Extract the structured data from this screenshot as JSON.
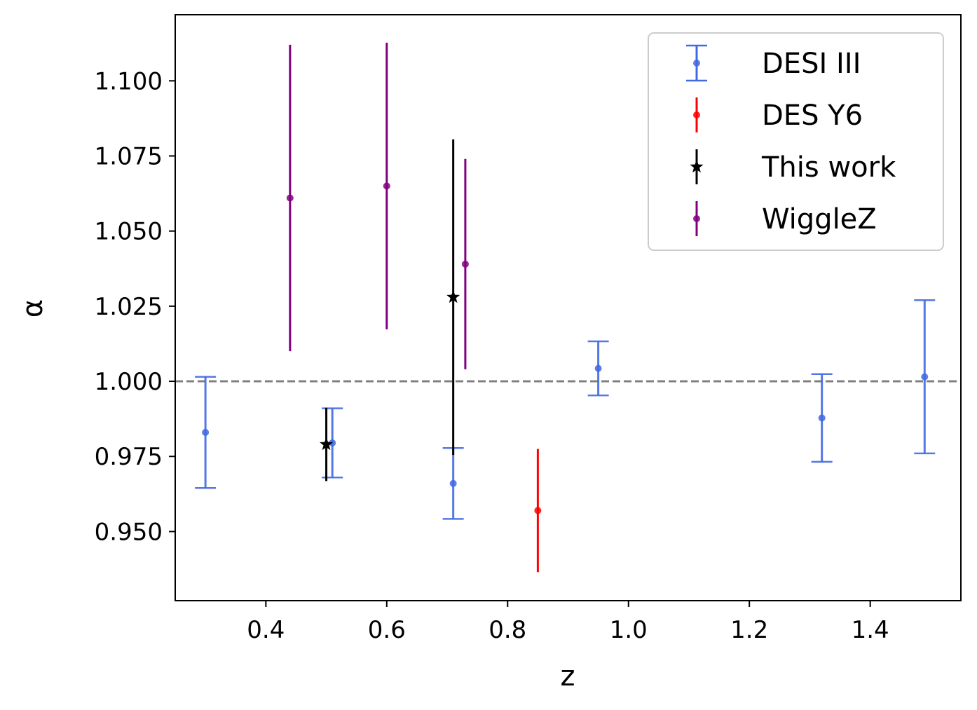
{
  "chart_data": {
    "type": "scatter",
    "title": "",
    "xlabel": "z",
    "ylabel": "α",
    "xlim": [
      0.25,
      1.55
    ],
    "ylim": [
      0.927,
      1.122
    ],
    "xticks": [
      0.4,
      0.6,
      0.8,
      1.0,
      1.2,
      1.4
    ],
    "xtick_labels": [
      "0.4",
      "0.6",
      "0.8",
      "1.0",
      "1.2",
      "1.4"
    ],
    "yticks": [
      0.95,
      0.975,
      1.0,
      1.025,
      1.05,
      1.075,
      1.1
    ],
    "ytick_labels": [
      "0.950",
      "0.975",
      "1.000",
      "1.025",
      "1.050",
      "1.075",
      "1.100"
    ],
    "reference_line": {
      "y": 1.0,
      "style": "dashed",
      "color": "#808080"
    },
    "legend_position": "top-right",
    "series": [
      {
        "name": "DESI III",
        "color": "#4169e1",
        "marker": "dot",
        "capped": true,
        "points": [
          {
            "x": 0.3,
            "y": 0.983,
            "err": 0.0185
          },
          {
            "x": 0.51,
            "y": 0.9795,
            "err": 0.0115
          },
          {
            "x": 0.71,
            "y": 0.966,
            "err": 0.0118
          },
          {
            "x": 0.95,
            "y": 1.0043,
            "err": 0.009
          },
          {
            "x": 1.32,
            "y": 0.9878,
            "err": 0.0146
          },
          {
            "x": 1.49,
            "y": 1.0015,
            "err": 0.0255
          }
        ]
      },
      {
        "name": "DES Y6",
        "color": "#ff0000",
        "marker": "dot",
        "capped": false,
        "points": [
          {
            "x": 0.85,
            "y": 0.957,
            "err": 0.0205
          }
        ]
      },
      {
        "name": "This work",
        "color": "#000000",
        "marker": "star",
        "capped": false,
        "points": [
          {
            "x": 0.5,
            "y": 0.979,
            "err": 0.0122
          },
          {
            "x": 0.71,
            "y": 1.028,
            "err": 0.0525
          }
        ]
      },
      {
        "name": "WiggleZ",
        "color": "#800080",
        "marker": "dot",
        "capped": false,
        "points": [
          {
            "x": 0.44,
            "y": 1.061,
            "err": 0.051
          },
          {
            "x": 0.6,
            "y": 1.065,
            "err": 0.0477
          },
          {
            "x": 0.73,
            "y": 1.039,
            "err": 0.035
          }
        ]
      }
    ]
  }
}
